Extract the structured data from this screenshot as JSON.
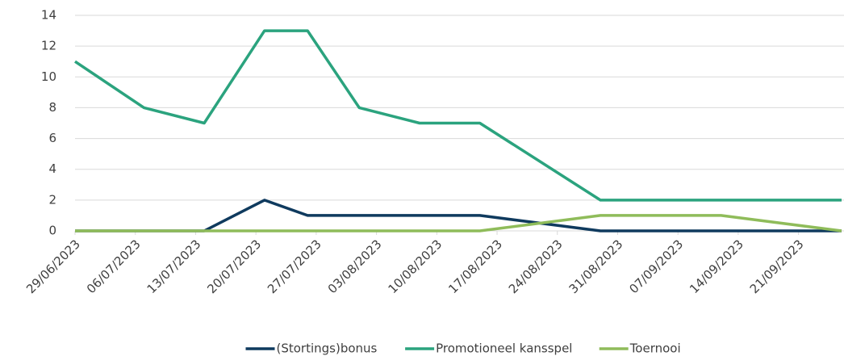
{
  "chart_data": {
    "type": "line",
    "x": [
      "29/06/2023",
      "07/07/2023",
      "14/07/2023",
      "21/07/2023",
      "26/07/2023",
      "01/08/2023",
      "08/08/2023",
      "15/08/2023",
      "29/08/2023",
      "12/09/2023",
      "26/09/2023"
    ],
    "series": [
      {
        "name": "(Stortings)bonus",
        "color": "#0f3a5e",
        "values": [
          0,
          0,
          0,
          2,
          1,
          1,
          1,
          1,
          0,
          0,
          0
        ]
      },
      {
        "name": "Promotioneel kansspel",
        "color": "#2ba37e",
        "values": [
          11,
          8,
          7,
          13,
          13,
          8,
          7,
          7,
          2,
          2,
          2
        ]
      },
      {
        "name": "Toernooi",
        "color": "#8fbc5a",
        "values": [
          0,
          0,
          0,
          0,
          0,
          0,
          0,
          0,
          1,
          1,
          0
        ]
      }
    ],
    "xlim": [
      "29/06/2023",
      "26/09/2023"
    ],
    "xticks": [
      "29/06/2023",
      "06/07/2023",
      "13/07/2023",
      "20/07/2023",
      "27/07/2023",
      "03/08/2023",
      "10/08/2023",
      "17/08/2023",
      "24/08/2023",
      "31/08/2023",
      "07/09/2023",
      "14/09/2023",
      "21/09/2023"
    ],
    "ylim": [
      0,
      14
    ],
    "yticks": [
      0,
      2,
      4,
      6,
      8,
      10,
      12,
      14
    ],
    "grid": true,
    "legend": "bottom"
  }
}
